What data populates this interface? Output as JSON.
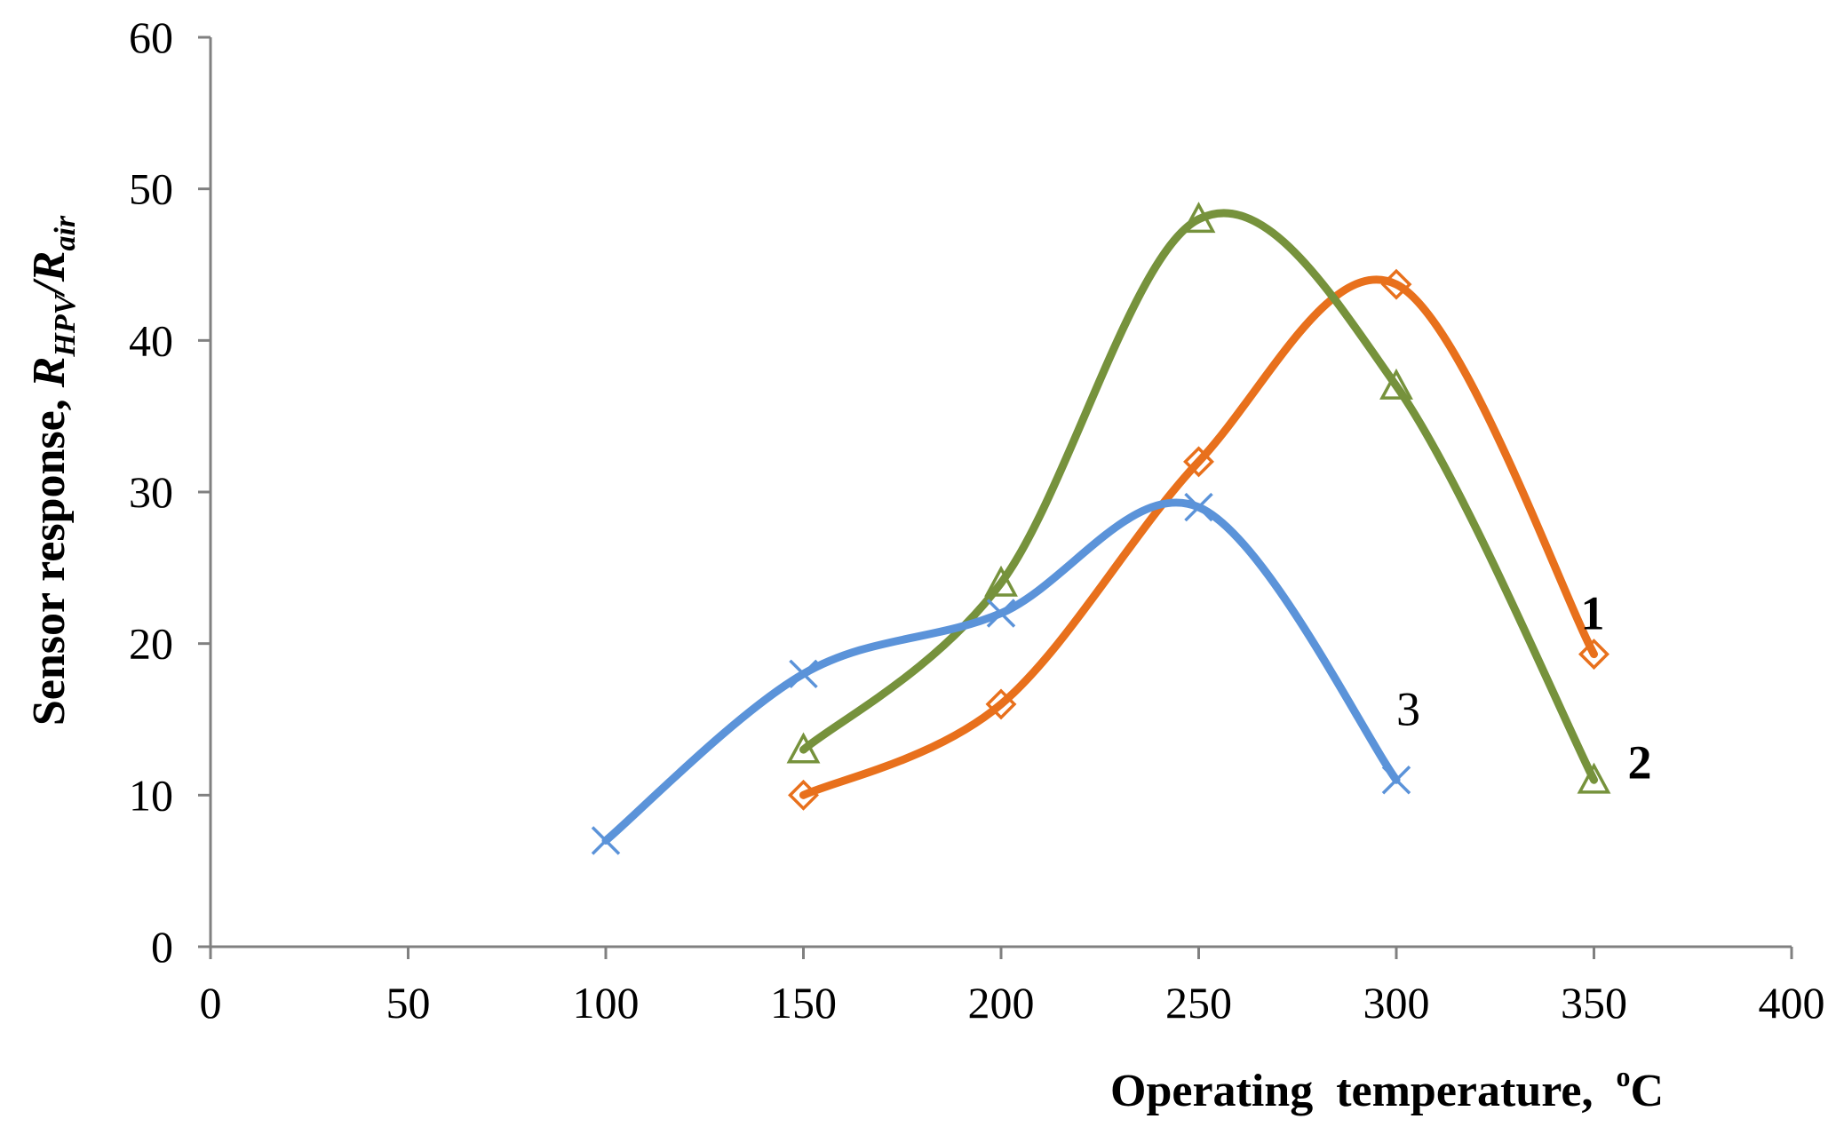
{
  "chart_data": {
    "type": "line",
    "title": "",
    "xlabel": "Operating  temperature,  ",
    "xlabel_degree": "o",
    "xlabel_unit": "C",
    "ylabel_prefix": "Sensor response, ",
    "ylabel_r1": "R",
    "ylabel_sub1": "HPV",
    "ylabel_slash": "/",
    "ylabel_r2": "R",
    "ylabel_sub2": "air",
    "xlim": [
      0,
      400
    ],
    "ylim": [
      0,
      60
    ],
    "xticks": [
      0,
      50,
      100,
      150,
      200,
      250,
      300,
      350,
      400
    ],
    "yticks": [
      0,
      10,
      20,
      30,
      40,
      50,
      60
    ],
    "grid": false,
    "series": [
      {
        "name": "1",
        "color": "#e8701c",
        "marker": "diamond",
        "label_bold": true,
        "x": [
          150,
          200,
          250,
          300,
          350
        ],
        "y": [
          10,
          16,
          32,
          43.7,
          19.3
        ]
      },
      {
        "name": "2",
        "color": "#76923c",
        "marker": "triangle",
        "label_bold": true,
        "x": [
          150,
          200,
          250,
          300,
          350
        ],
        "y": [
          13,
          24,
          48,
          37,
          11
        ]
      },
      {
        "name": "3",
        "color": "#5b93d9",
        "marker": "x",
        "label_bold": false,
        "x": [
          100,
          150,
          200,
          250,
          300
        ],
        "y": [
          7,
          18,
          22,
          29,
          11
        ]
      }
    ]
  }
}
